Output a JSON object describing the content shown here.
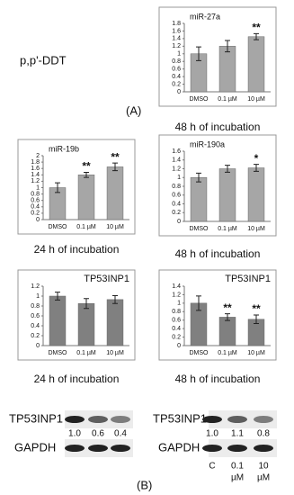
{
  "label": "p,p'-DDT",
  "panel_a": "(A)",
  "panel_b": "(B)",
  "chart_data": [
    {
      "type": "bar",
      "title": "miR-27a",
      "caption": "48 h of incubation",
      "categories": [
        "DMSO",
        "0.1 µM",
        "10 µM"
      ],
      "values": [
        1.0,
        1.2,
        1.45
      ],
      "errors": [
        0.18,
        0.15,
        0.08
      ],
      "annotations": [
        null,
        null,
        "**"
      ],
      "color": "#a6a6a6",
      "ylim": [
        0,
        1.8
      ],
      "yticks": [
        0,
        0.2,
        0.4,
        0.6,
        0.8,
        1,
        1.2,
        1.4,
        1.6,
        1.8
      ]
    },
    {
      "type": "bar",
      "title": "miR-19b",
      "caption": "24 h of incubation",
      "categories": [
        "DMSO",
        "0.1 µM",
        "10 µM"
      ],
      "values": [
        1.0,
        1.4,
        1.65
      ],
      "errors": [
        0.15,
        0.08,
        0.12
      ],
      "annotations": [
        null,
        "**",
        "**"
      ],
      "color": "#a6a6a6",
      "ylim": [
        0,
        2
      ],
      "yticks": [
        0,
        0.2,
        0.4,
        0.6,
        0.8,
        1,
        1.2,
        1.4,
        1.6,
        1.8,
        2
      ]
    },
    {
      "type": "bar",
      "title": "miR-190a",
      "caption": "48 h of incubation",
      "categories": [
        "DMSO",
        "0.1 µM",
        "10 µM"
      ],
      "values": [
        1.0,
        1.2,
        1.22
      ],
      "errors": [
        0.1,
        0.08,
        0.08
      ],
      "annotations": [
        null,
        null,
        "*"
      ],
      "color": "#a6a6a6",
      "ylim": [
        0,
        1.6
      ],
      "yticks": [
        0,
        0.2,
        0.4,
        0.6,
        0.8,
        1,
        1.2,
        1.4,
        1.6
      ]
    },
    {
      "type": "bar",
      "title": "TP53INP1",
      "caption": "24 h of incubation",
      "categories": [
        "DMSO",
        "0.1 µM",
        "10 µM"
      ],
      "values": [
        1.0,
        0.85,
        0.93
      ],
      "errors": [
        0.08,
        0.1,
        0.08
      ],
      "annotations": [
        null,
        null,
        null
      ],
      "color": "#808080",
      "ylim": [
        0,
        1.2
      ],
      "yticks": [
        0,
        0.2,
        0.4,
        0.6,
        0.8,
        1,
        1.2
      ]
    },
    {
      "type": "bar",
      "title": "TP53INP1",
      "caption": "48 h of incubation",
      "categories": [
        "DMSO",
        "0.1 µM",
        "10 µM"
      ],
      "values": [
        1.0,
        0.67,
        0.62
      ],
      "errors": [
        0.17,
        0.08,
        0.1
      ],
      "annotations": [
        null,
        "**",
        "**"
      ],
      "color": "#808080",
      "ylim": [
        0,
        1.4
      ],
      "yticks": [
        0,
        0.2,
        0.4,
        0.6,
        0.8,
        1,
        1.2,
        1.4
      ]
    }
  ],
  "blots": [
    {
      "rows": [
        "TP53INP1",
        "GAPDH"
      ],
      "ratios": [
        "1.0",
        "0.6",
        "0.4"
      ]
    },
    {
      "rows": [
        "TP53INP1",
        "GAPDH"
      ],
      "ratios": [
        "1.0",
        "1.1",
        "0.8"
      ],
      "conditions": [
        [
          "C"
        ],
        [
          "0.1",
          "µM"
        ],
        [
          "10",
          "µM"
        ]
      ]
    }
  ]
}
